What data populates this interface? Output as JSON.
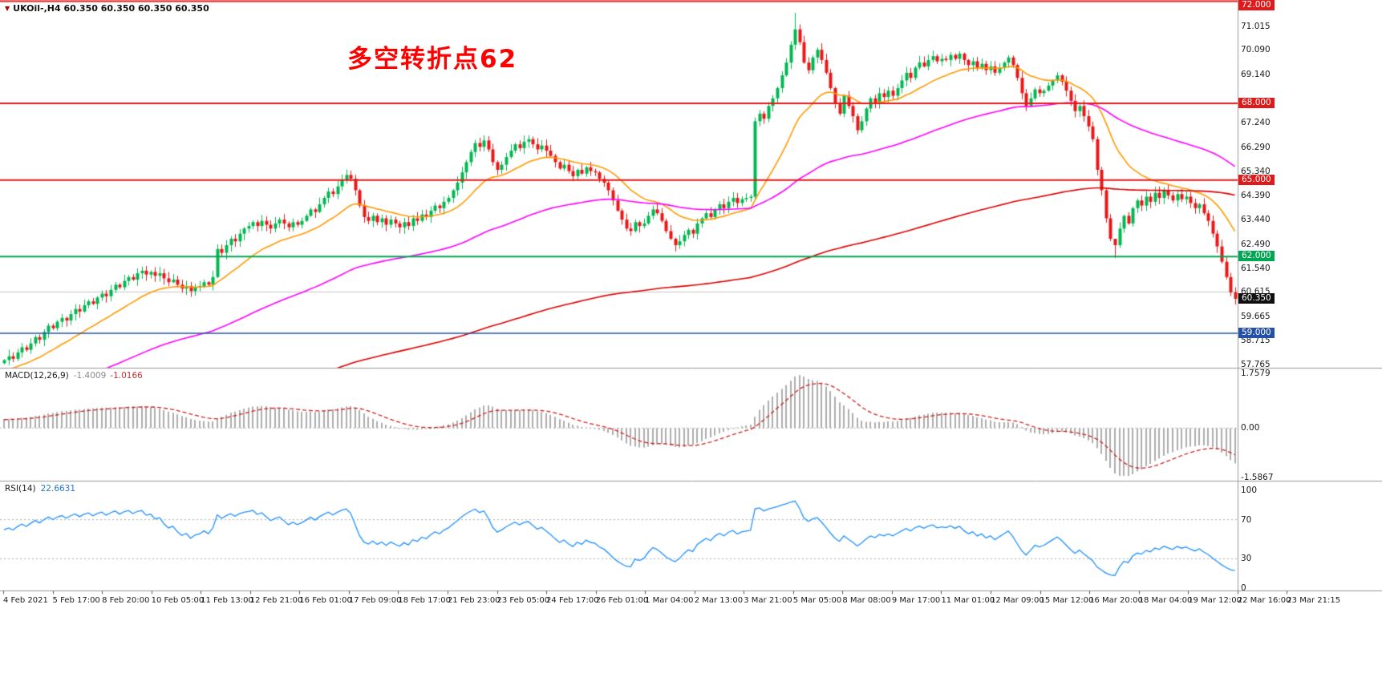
{
  "window": {
    "title_text": "UKOil-,H4 60.350 60.350 60.350 60.350"
  },
  "annotation": {
    "text": "多空转折点62",
    "color": "#FF0000"
  },
  "chart_data": {
    "type": "candlestick",
    "symbol": "UKOil-",
    "timeframe": "H4",
    "quote_ohlc": "60.350 60.350 60.350 60.350",
    "title": "多空转折点62",
    "colors": {
      "up": "#00B850",
      "down": "#E81717",
      "background": "#FFFFFF"
    },
    "price_axis": {
      "min": 57.65,
      "max": 72.05,
      "ticks": [
        {
          "t": "71.015",
          "p": 71.015
        },
        {
          "t": "70.090",
          "p": 70.09
        },
        {
          "t": "69.140",
          "p": 69.14
        },
        {
          "t": "67.240",
          "p": 67.24
        },
        {
          "t": "66.290",
          "p": 66.29
        },
        {
          "t": "65.340",
          "p": 65.34
        },
        {
          "t": "64.390",
          "p": 64.39
        },
        {
          "t": "63.440",
          "p": 63.44
        },
        {
          "t": "62.490",
          "p": 62.49
        },
        {
          "t": "61.540",
          "p": 61.54
        },
        {
          "t": "60.615",
          "p": 60.615
        },
        {
          "t": "59.665",
          "p": 59.665
        },
        {
          "t": "58.715",
          "p": 58.715
        },
        {
          "t": "57.765",
          "p": 57.765
        }
      ],
      "line_labels": [
        {
          "t": "72.000",
          "p": 72.0,
          "bg": "#E01A1A"
        },
        {
          "t": "68.000",
          "p": 68.0,
          "bg": "#E01A1A"
        },
        {
          "t": "65.000",
          "p": 65.0,
          "bg": "#E01A1A"
        },
        {
          "t": "62.000",
          "p": 62.0,
          "bg": "#00A651"
        },
        {
          "t": "60.350",
          "p": 60.35,
          "bg": "#101010"
        },
        {
          "t": "59.000",
          "p": 59.0,
          "bg": "#2450A8"
        }
      ]
    },
    "hlines": [
      {
        "p": 60.615,
        "color": "#C4C4C4",
        "w": 1,
        "under": true
      },
      {
        "p": 72.0,
        "color": "#E01A1A",
        "w": 2,
        "under": false
      },
      {
        "p": 68.0,
        "color": "#E01A1A",
        "w": 2,
        "under": false
      },
      {
        "p": 65.0,
        "color": "#E01A1A",
        "w": 2,
        "under": false
      },
      {
        "p": 62.0,
        "color": "#00A651",
        "w": 2,
        "under": false
      },
      {
        "p": 59.0,
        "color": "#2450A8",
        "w": 1.4,
        "under": false
      }
    ],
    "moving_averages": [
      {
        "period": 20,
        "color": "#FF9A00"
      },
      {
        "period": 85,
        "color": "#FF00FF"
      },
      {
        "period": 250,
        "color": "#DD0000"
      }
    ],
    "prehistory": {
      "bars": 170,
      "start_price": 51.3,
      "amplitude": 0.38
    },
    "candles": {
      "closes": [
        57.95,
        58.1,
        58.0,
        58.25,
        58.45,
        58.35,
        58.6,
        58.85,
        58.75,
        59.05,
        59.3,
        59.2,
        59.45,
        59.6,
        59.5,
        59.75,
        59.95,
        59.85,
        60.1,
        60.25,
        60.15,
        60.4,
        60.55,
        60.45,
        60.7,
        60.9,
        60.8,
        61.05,
        61.2,
        61.1,
        61.35,
        61.45,
        61.3,
        61.4,
        61.25,
        61.35,
        61.15,
        61.0,
        61.1,
        60.9,
        60.75,
        60.85,
        60.65,
        60.8,
        60.85,
        61.0,
        60.9,
        61.2,
        62.3,
        62.15,
        62.45,
        62.7,
        62.6,
        62.9,
        63.1,
        63.2,
        63.35,
        63.2,
        63.4,
        63.25,
        63.1,
        63.3,
        63.45,
        63.3,
        63.15,
        63.35,
        63.25,
        63.4,
        63.6,
        63.85,
        63.75,
        64.05,
        64.3,
        64.55,
        64.45,
        64.75,
        65.0,
        65.2,
        65.05,
        64.6,
        64.0,
        63.55,
        63.4,
        63.6,
        63.35,
        63.5,
        63.25,
        63.45,
        63.3,
        63.15,
        63.35,
        63.2,
        63.5,
        63.4,
        63.65,
        63.55,
        63.8,
        64.0,
        63.9,
        64.15,
        64.3,
        64.6,
        64.9,
        65.3,
        65.7,
        66.1,
        66.45,
        66.3,
        66.55,
        66.2,
        65.7,
        65.4,
        65.6,
        65.9,
        66.15,
        66.4,
        66.25,
        66.5,
        66.6,
        66.4,
        66.2,
        66.35,
        66.15,
        65.95,
        65.7,
        65.45,
        65.6,
        65.35,
        65.15,
        65.4,
        65.25,
        65.5,
        65.35,
        65.3,
        65.05,
        64.9,
        64.6,
        64.2,
        63.8,
        63.45,
        63.1,
        63.0,
        63.35,
        63.2,
        63.3,
        63.6,
        63.85,
        63.7,
        63.4,
        63.0,
        62.7,
        62.45,
        62.6,
        62.85,
        63.05,
        62.9,
        63.3,
        63.5,
        63.7,
        63.55,
        63.85,
        64.05,
        63.9,
        64.15,
        64.3,
        64.1,
        64.25,
        64.3,
        64.35,
        67.3,
        67.6,
        67.4,
        67.9,
        68.2,
        68.6,
        69.1,
        69.6,
        70.3,
        70.9,
        70.4,
        69.6,
        69.3,
        69.8,
        70.1,
        69.7,
        69.2,
        68.6,
        68.0,
        67.6,
        68.3,
        67.9,
        67.5,
        66.95,
        67.3,
        67.8,
        68.2,
        68.0,
        68.4,
        68.25,
        68.5,
        68.3,
        68.6,
        68.9,
        69.2,
        69.0,
        69.4,
        69.6,
        69.45,
        69.7,
        69.85,
        69.65,
        69.75,
        69.7,
        69.9,
        69.75,
        69.95,
        69.7,
        69.5,
        69.65,
        69.4,
        69.55,
        69.3,
        69.45,
        69.2,
        69.4,
        69.6,
        69.8,
        69.5,
        69.0,
        68.4,
        67.9,
        68.2,
        68.55,
        68.4,
        68.5,
        68.7,
        68.9,
        69.1,
        68.85,
        68.5,
        68.1,
        67.7,
        67.9,
        67.5,
        67.1,
        66.6,
        65.4,
        64.6,
        63.5,
        62.7,
        62.45,
        63.1,
        63.6,
        63.3,
        63.9,
        64.2,
        64.0,
        64.35,
        64.15,
        64.5,
        64.3,
        64.6,
        64.4,
        64.2,
        64.45,
        64.25,
        64.35,
        64.1,
        63.9,
        64.05,
        63.7,
        63.4,
        62.9,
        62.4,
        61.8,
        61.2,
        60.6,
        60.35
      ],
      "wick_overrides": {
        "169": [
          67.45,
          64.25
        ],
        "178": [
          71.55,
          70.1
        ],
        "250": [
          62.6,
          61.95
        ],
        "277": [
          60.8,
          60.12
        ]
      }
    },
    "time_labels": [
      "4 Feb 2021",
      "5 Feb 17:00",
      "8 Feb 20:00",
      "10 Feb 05:00",
      "11 Feb 13:00",
      "12 Feb 21:00",
      "16 Feb 01:00",
      "17 Feb 09:00",
      "18 Feb 17:00",
      "21 Feb 23:00",
      "23 Feb 05:00",
      "24 Feb 17:00",
      "26 Feb 01:00",
      "1 Mar 04:00",
      "2 Mar 13:00",
      "3 Mar 21:00",
      "5 Mar 05:00",
      "8 Mar 08:00",
      "9 Mar 17:00",
      "11 Mar 01:00",
      "12 Mar 09:00",
      "15 Mar 12:00",
      "16 Mar 20:00",
      "18 Mar 04:00",
      "19 Mar 12:00",
      "22 Mar 16:00",
      "23 Mar 21:15"
    ],
    "macd": {
      "label": "MACD(12,26,9)",
      "main_value": "-1.4009",
      "signal_value": "-1.0166",
      "fast": 12,
      "slow": 26,
      "signal": 9,
      "axis_max": 1.7579,
      "axis_min": -1.5867,
      "ticks": [
        {
          "t": "1.7579",
          "v": 1.7579
        },
        {
          "t": "0.00",
          "v": 0
        },
        {
          "t": "-1.5867",
          "v": -1.5867
        }
      ],
      "hist_color": "#ADADAD",
      "signal_color": "#D02020"
    },
    "rsi": {
      "label": "RSI(14)",
      "value_text": "22.6631",
      "period": 14,
      "levels": [
        70,
        30
      ],
      "ticks": [
        {
          "t": "100",
          "v": 100
        },
        {
          "t": "70",
          "v": 70
        },
        {
          "t": "30",
          "v": 30
        },
        {
          "t": "0",
          "v": 0
        }
      ],
      "color": "#1E90FF"
    }
  }
}
